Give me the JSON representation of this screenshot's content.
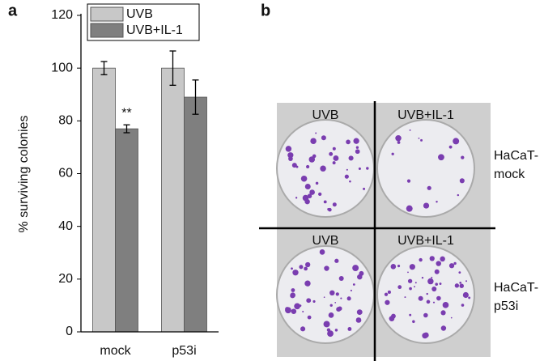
{
  "panel_labels": [
    "a",
    "b"
  ],
  "chart_data": {
    "type": "bar",
    "ylabel": "% surviving colonies",
    "categories": [
      "mock",
      "p53i"
    ],
    "series": [
      {
        "name": "UVB",
        "color": "#c8c8c8",
        "values": [
          100,
          100
        ],
        "errors": [
          2.5,
          6.5
        ]
      },
      {
        "name": "UVB+IL-1",
        "color": "#7f7f7f",
        "values": [
          77,
          89
        ],
        "errors": [
          1.5,
          6.5
        ]
      }
    ],
    "annotations": [
      "**"
    ],
    "ylim": [
      0,
      120
    ],
    "yticks": [
      0,
      20,
      40,
      60,
      80,
      100,
      120
    ],
    "legend": "top",
    "grid": false
  },
  "photo_panel": {
    "columns": [
      "UVB",
      "UVB+IL-1"
    ],
    "rows": [
      [
        "HaCaT-",
        "mock"
      ],
      [
        "HaCaT-",
        "p53i"
      ]
    ]
  }
}
